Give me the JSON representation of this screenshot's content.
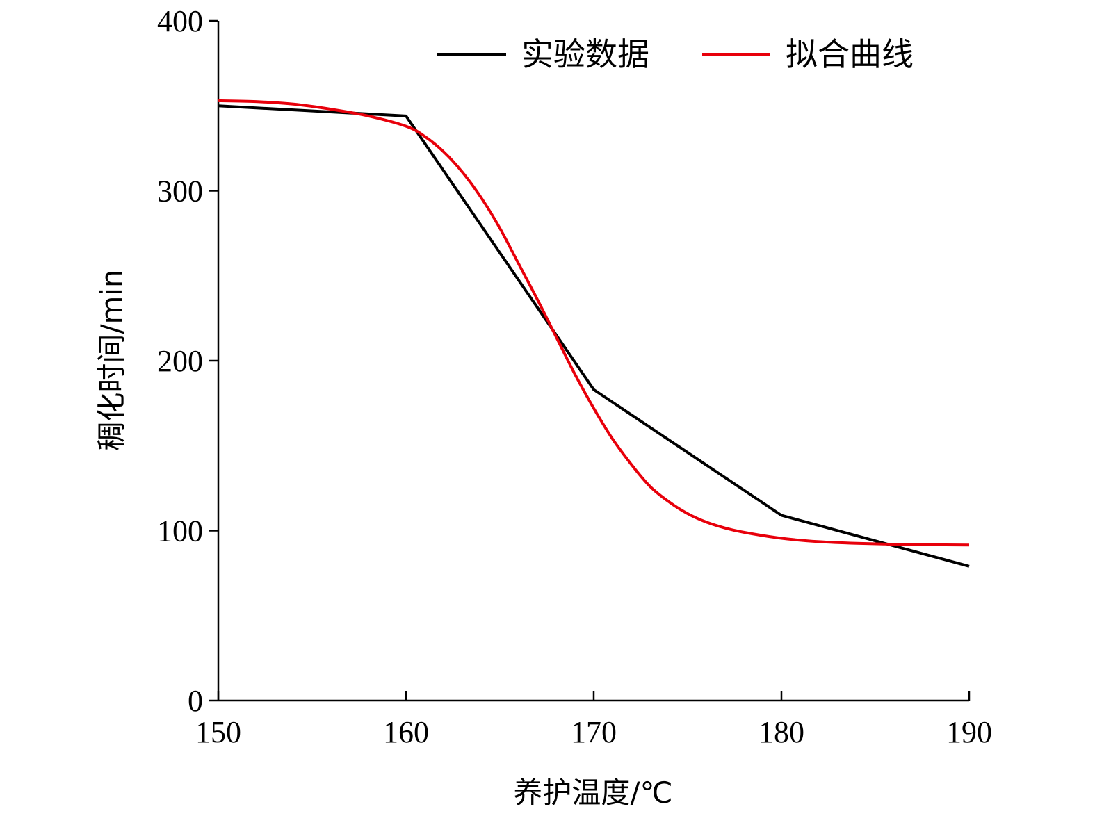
{
  "chart_data": {
    "type": "line",
    "xlabel": "养护温度/℃",
    "ylabel": "稠化时间/min",
    "xlim": [
      150,
      190
    ],
    "ylim": [
      0,
      400
    ],
    "xticks": [
      150,
      160,
      170,
      180,
      190
    ],
    "yticks": [
      0,
      100,
      200,
      300,
      400
    ],
    "legend_position": "top-right",
    "series": [
      {
        "name": "实验数据",
        "color": "#000000",
        "x": [
          150,
          160,
          170,
          180,
          190
        ],
        "y": [
          350,
          344,
          183,
          109,
          79
        ]
      },
      {
        "name": "拟合曲线",
        "color": "#e8000b",
        "x": [
          150,
          152,
          154,
          156,
          158,
          160,
          161,
          162,
          163,
          164,
          165,
          166,
          167,
          168,
          169,
          170,
          171,
          172,
          173,
          174,
          175,
          176,
          177,
          178,
          180,
          182,
          184,
          186,
          188,
          190
        ],
        "y": [
          353,
          352.5,
          351,
          348,
          344,
          338,
          332,
          323,
          311,
          296,
          278,
          257,
          236,
          214,
          192,
          172,
          154,
          139,
          126,
          117,
          110,
          105,
          101.5,
          99,
          95.5,
          93.5,
          92.5,
          92,
          91.7,
          91.5
        ]
      }
    ]
  }
}
